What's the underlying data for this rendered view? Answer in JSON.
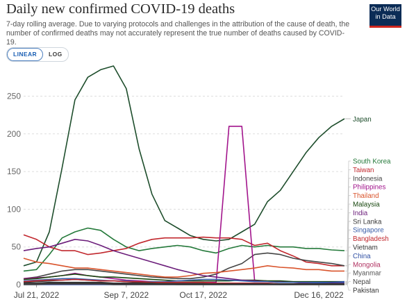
{
  "header": {
    "title": "Daily new confirmed COVID-19 deaths",
    "subtitle": "7-day rolling average. Due to varying protocols and challenges in the attribution of the cause of death, the number of confirmed deaths may not accurately represent the true number of deaths caused by COVID-19.",
    "logo_line1": "Our World",
    "logo_line2": "in Data",
    "toggle_linear": "LINEAR",
    "toggle_log": "LOG"
  },
  "colors": {
    "accent": "#1a5fb4",
    "logo_bg": "#0b2c56",
    "logo_bar": "#ce261e"
  },
  "chart_data": {
    "type": "line",
    "title": "Daily new confirmed COVID-19 deaths",
    "xlabel": "",
    "ylabel": "",
    "x_ticks": [
      "Jul 21, 2022",
      "Sep 7, 2022",
      "Oct 17, 2022",
      "Dec 16, 2022"
    ],
    "x": [
      "Jul 14, 2022",
      "Jul 21, 2022",
      "Jul 28, 2022",
      "Aug 4, 2022",
      "Aug 11, 2022",
      "Aug 18, 2022",
      "Aug 25, 2022",
      "Sep 1, 2022",
      "Sep 7, 2022",
      "Sep 14, 2022",
      "Sep 21, 2022",
      "Sep 28, 2022",
      "Oct 5, 2022",
      "Oct 12, 2022",
      "Oct 17, 2022",
      "Oct 24, 2022",
      "Oct 31, 2022",
      "Nov 7, 2022",
      "Nov 14, 2022",
      "Nov 21, 2022",
      "Nov 28, 2022",
      "Dec 5, 2022",
      "Dec 12, 2022",
      "Dec 16, 2022",
      "Dec 21, 2022",
      "Dec 26, 2022"
    ],
    "y_ticks": [
      0,
      50,
      100,
      150,
      200,
      250
    ],
    "ylim": [
      0,
      290
    ],
    "grid": true,
    "series": [
      {
        "name": "Japan",
        "color": "#1d4d2b",
        "values": [
          25,
          30,
          70,
          155,
          245,
          275,
          285,
          290,
          260,
          180,
          120,
          85,
          75,
          65,
          60,
          58,
          60,
          70,
          80,
          110,
          125,
          150,
          175,
          195,
          210,
          220
        ]
      },
      {
        "name": "South Korea",
        "color": "#24793a",
        "values": [
          18,
          20,
          40,
          62,
          70,
          75,
          72,
          60,
          50,
          45,
          48,
          50,
          52,
          50,
          45,
          42,
          48,
          52,
          50,
          52,
          50,
          50,
          48,
          48,
          46,
          45
        ]
      },
      {
        "name": "Taiwan",
        "color": "#c1272d",
        "values": [
          66,
          60,
          50,
          45,
          45,
          40,
          42,
          45,
          48,
          55,
          60,
          62,
          62,
          62,
          63,
          62,
          62,
          60,
          52,
          55,
          45,
          38,
          30,
          28,
          25,
          25
        ]
      },
      {
        "name": "Indonesia",
        "color": "#444444",
        "values": [
          8,
          10,
          14,
          18,
          20,
          20,
          18,
          16,
          14,
          12,
          10,
          9,
          8,
          8,
          10,
          14,
          22,
          28,
          40,
          42,
          40,
          35,
          32,
          30,
          28,
          25
        ]
      },
      {
        "name": "Philippines",
        "color": "#a2148c",
        "values": [
          8,
          9,
          10,
          12,
          15,
          12,
          10,
          8,
          6,
          5,
          4,
          3,
          3,
          3,
          3,
          3,
          210,
          210,
          5,
          4,
          4,
          3,
          3,
          3,
          2,
          2
        ]
      },
      {
        "name": "Thailand",
        "color": "#d9532b",
        "values": [
          35,
          30,
          28,
          25,
          22,
          22,
          20,
          18,
          16,
          14,
          12,
          10,
          10,
          12,
          15,
          16,
          18,
          20,
          22,
          25,
          23,
          22,
          20,
          20,
          18,
          18
        ]
      },
      {
        "name": "Malaysia",
        "color": "#18470f",
        "values": [
          7,
          8,
          10,
          12,
          14,
          12,
          10,
          10,
          9,
          8,
          7,
          6,
          5,
          5,
          5,
          5,
          5,
          6,
          6,
          5,
          5,
          4,
          4,
          4,
          4,
          4
        ]
      },
      {
        "name": "India",
        "color": "#6b1d7a",
        "values": [
          45,
          48,
          50,
          55,
          60,
          58,
          52,
          45,
          40,
          35,
          30,
          25,
          20,
          16,
          12,
          10,
          8,
          6,
          5,
          4,
          3,
          3,
          2,
          2,
          2,
          2
        ]
      },
      {
        "name": "Sri Lanka",
        "color": "#3a3a3a",
        "values": [
          3,
          4,
          5,
          6,
          7,
          6,
          5,
          5,
          4,
          3,
          3,
          2,
          2,
          2,
          2,
          2,
          1,
          1,
          1,
          1,
          1,
          1,
          1,
          1,
          1,
          1
        ]
      },
      {
        "name": "Singapore",
        "color": "#3b5fa8",
        "values": [
          5,
          6,
          7,
          8,
          8,
          7,
          6,
          5,
          5,
          4,
          4,
          4,
          5,
          6,
          7,
          7,
          6,
          5,
          4,
          4,
          3,
          3,
          3,
          3,
          3,
          3
        ]
      },
      {
        "name": "Bangladesh",
        "color": "#c1272d",
        "values": [
          4,
          5,
          6,
          6,
          7,
          6,
          5,
          5,
          4,
          4,
          3,
          3,
          3,
          3,
          3,
          2,
          2,
          2,
          2,
          2,
          1,
          1,
          1,
          1,
          1,
          1
        ]
      },
      {
        "name": "Vietnam",
        "color": "#333333",
        "values": [
          2,
          2,
          3,
          3,
          3,
          3,
          3,
          2,
          2,
          2,
          2,
          1,
          1,
          1,
          1,
          1,
          1,
          1,
          1,
          1,
          0,
          0,
          0,
          0,
          0,
          0
        ]
      },
      {
        "name": "China",
        "color": "#2f4fa3",
        "values": [
          0,
          0,
          0,
          0,
          0,
          0,
          0,
          0,
          0,
          0,
          0,
          0,
          0,
          0,
          0,
          0,
          0,
          0,
          0,
          0,
          0,
          0,
          1,
          2,
          3,
          4
        ]
      },
      {
        "name": "Mongolia",
        "color": "#b03060",
        "values": [
          1,
          1,
          1,
          1,
          1,
          1,
          1,
          1,
          1,
          1,
          1,
          1,
          1,
          1,
          1,
          1,
          1,
          1,
          1,
          1,
          1,
          1,
          1,
          1,
          1,
          1
        ]
      },
      {
        "name": "Myanmar",
        "color": "#555555",
        "values": [
          1,
          1,
          1,
          1,
          1,
          1,
          1,
          1,
          1,
          1,
          1,
          1,
          0,
          0,
          0,
          0,
          0,
          0,
          0,
          0,
          0,
          0,
          0,
          0,
          0,
          0
        ]
      },
      {
        "name": "Nepal",
        "color": "#444444",
        "values": [
          0,
          0,
          1,
          1,
          1,
          1,
          1,
          0,
          0,
          0,
          0,
          0,
          0,
          0,
          0,
          0,
          0,
          0,
          0,
          0,
          0,
          0,
          0,
          0,
          0,
          0
        ]
      },
      {
        "name": "Pakistan",
        "color": "#333333",
        "values": [
          2,
          2,
          2,
          2,
          2,
          2,
          2,
          1,
          1,
          1,
          1,
          1,
          1,
          1,
          1,
          1,
          1,
          1,
          1,
          1,
          1,
          1,
          1,
          1,
          1,
          1
        ]
      }
    ],
    "legend": "right"
  }
}
